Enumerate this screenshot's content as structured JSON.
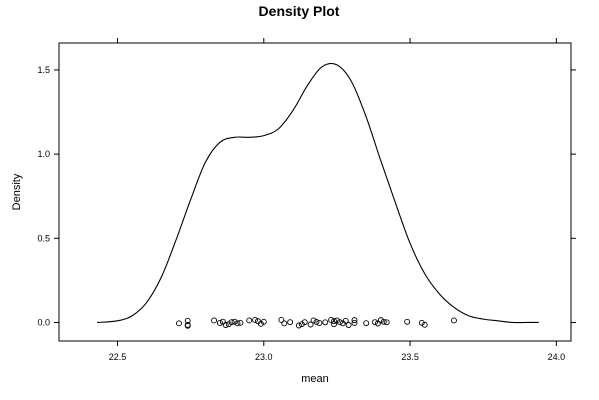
{
  "chart_data": {
    "type": "line",
    "title": "Density Plot",
    "xlabel": "mean",
    "ylabel": "Density",
    "xlim": [
      22.3,
      24.05
    ],
    "ylim": [
      -0.11,
      1.66
    ],
    "x_ticks": [
      22.5,
      23.0,
      23.5,
      24.0
    ],
    "x_tick_labels": [
      "22.5",
      "23.0",
      "23.5",
      "24.0"
    ],
    "y_ticks": [
      0.0,
      0.5,
      1.0,
      1.5
    ],
    "y_tick_labels": [
      "0.0",
      "0.5",
      "1.0",
      "1.5"
    ],
    "grid": false,
    "legend": "none",
    "series": [
      {
        "kind": "density-curve",
        "x": [
          22.43,
          22.5,
          22.55,
          22.6,
          22.65,
          22.7,
          22.75,
          22.8,
          22.85,
          22.9,
          22.95,
          23.0,
          23.05,
          23.1,
          23.15,
          23.2,
          23.25,
          23.3,
          23.35,
          23.4,
          23.45,
          23.5,
          23.55,
          23.6,
          23.65,
          23.7,
          23.75,
          23.8,
          23.85,
          23.9,
          23.94
        ],
        "y": [
          0.0,
          0.01,
          0.04,
          0.12,
          0.27,
          0.49,
          0.73,
          0.95,
          1.07,
          1.1,
          1.1,
          1.11,
          1.15,
          1.26,
          1.41,
          1.52,
          1.53,
          1.43,
          1.22,
          0.96,
          0.71,
          0.47,
          0.29,
          0.17,
          0.09,
          0.04,
          0.02,
          0.01,
          0.0,
          0.0,
          0.0
        ]
      },
      {
        "kind": "rug-points",
        "x": [
          22.71,
          22.74,
          22.74,
          22.74,
          22.83,
          22.85,
          22.86,
          22.87,
          22.88,
          22.89,
          22.9,
          22.91,
          22.92,
          22.95,
          22.97,
          22.98,
          22.99,
          23.0,
          23.06,
          23.07,
          23.09,
          23.12,
          23.13,
          23.14,
          23.16,
          23.17,
          23.18,
          23.19,
          23.21,
          23.23,
          23.24,
          23.24,
          23.25,
          23.26,
          23.27,
          23.28,
          23.29,
          23.31,
          23.31,
          23.35,
          23.38,
          23.39,
          23.4,
          23.41,
          23.42,
          23.49,
          23.54,
          23.55,
          23.65
        ],
        "y": [
          -0.005,
          0.01,
          -0.02,
          -0.015,
          0.012,
          -0.003,
          0.005,
          -0.015,
          -0.01,
          0.002,
          0.005,
          -0.005,
          -0.002,
          0.012,
          0.015,
          0.008,
          -0.008,
          0.004,
          0.015,
          -0.005,
          0.002,
          -0.018,
          -0.01,
          0.002,
          -0.012,
          0.012,
          0.003,
          -0.003,
          0.001,
          0.015,
          0.008,
          -0.01,
          0.012,
          0.002,
          -0.005,
          0.01,
          -0.015,
          -0.003,
          0.014,
          -0.004,
          0.002,
          -0.006,
          0.014,
          0.004,
          0.001,
          0.004,
          -0.002,
          -0.014,
          0.012
        ]
      }
    ]
  }
}
